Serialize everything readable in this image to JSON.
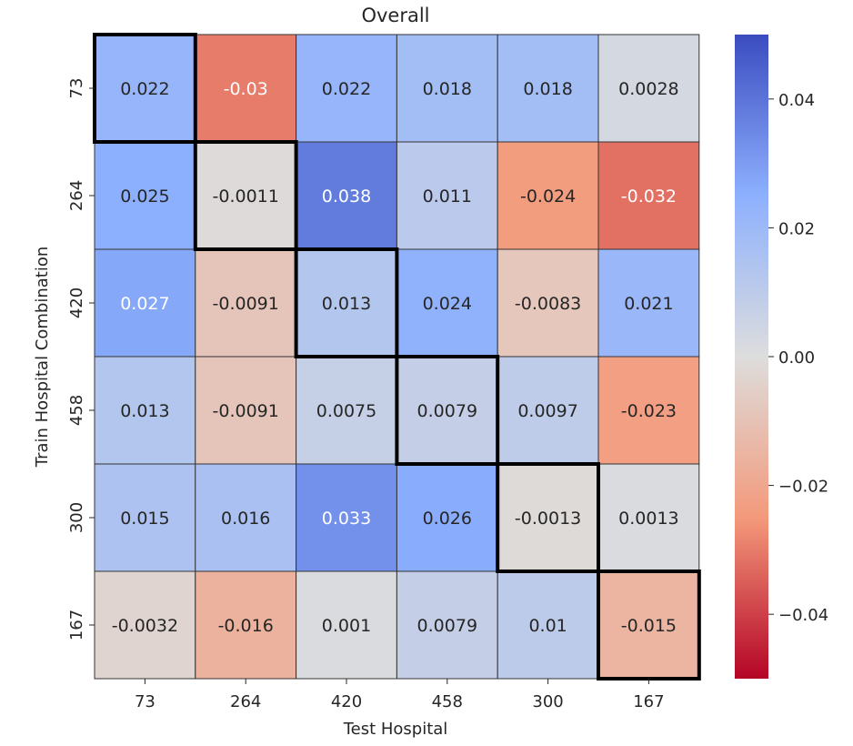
{
  "chart_data": {
    "type": "heatmap",
    "title": "Overall",
    "xlabel": "Test Hospital",
    "ylabel": "Train Hospital Combination",
    "x_categories": [
      "73",
      "264",
      "420",
      "458",
      "300",
      "167"
    ],
    "y_categories": [
      "73",
      "264",
      "420",
      "458",
      "300",
      "167"
    ],
    "values": [
      [
        0.022,
        -0.03,
        0.022,
        0.018,
        0.018,
        0.0028
      ],
      [
        0.025,
        -0.0011,
        0.038,
        0.011,
        -0.024,
        -0.032
      ],
      [
        0.027,
        -0.0091,
        0.013,
        0.024,
        -0.0083,
        0.021
      ],
      [
        0.013,
        -0.0091,
        0.0075,
        0.0079,
        0.0097,
        -0.023
      ],
      [
        0.015,
        0.016,
        0.033,
        0.026,
        -0.0013,
        0.0013
      ],
      [
        -0.0032,
        -0.016,
        0.001,
        0.0079,
        0.01,
        -0.015
      ]
    ],
    "cell_labels": [
      [
        "0.022",
        "-0.03",
        "0.022",
        "0.018",
        "0.018",
        "0.0028"
      ],
      [
        "0.025",
        "-0.0011",
        "0.038",
        "0.011",
        "-0.024",
        "-0.032"
      ],
      [
        "0.027",
        "-0.0091",
        "0.013",
        "0.024",
        "-0.0083",
        "0.021"
      ],
      [
        "0.013",
        "-0.0091",
        "0.0075",
        "0.0079",
        "0.0097",
        "-0.023"
      ],
      [
        "0.015",
        "0.016",
        "0.033",
        "0.026",
        "-0.0013",
        "0.0013"
      ],
      [
        "-0.0032",
        "-0.016",
        "0.001",
        "0.0079",
        "0.01",
        "-0.015"
      ]
    ],
    "colormap": "coolwarm",
    "vmin": -0.05,
    "vmax": 0.05,
    "colorbar_ticks": [
      0.04,
      0.02,
      0.0,
      -0.02,
      -0.04
    ],
    "colorbar_tick_labels": [
      "0.04",
      "0.02",
      "0.00",
      "−0.02",
      "−0.04"
    ],
    "highlighted_cells": [
      [
        0,
        0
      ],
      [
        1,
        1
      ],
      [
        2,
        2
      ],
      [
        3,
        3
      ],
      [
        4,
        4
      ],
      [
        5,
        5
      ]
    ],
    "colors": {
      "cool_end": "#3b4cc0",
      "neutral": "#dddddd",
      "warm_end": "#b40426",
      "highlight_border": "#000000"
    }
  }
}
